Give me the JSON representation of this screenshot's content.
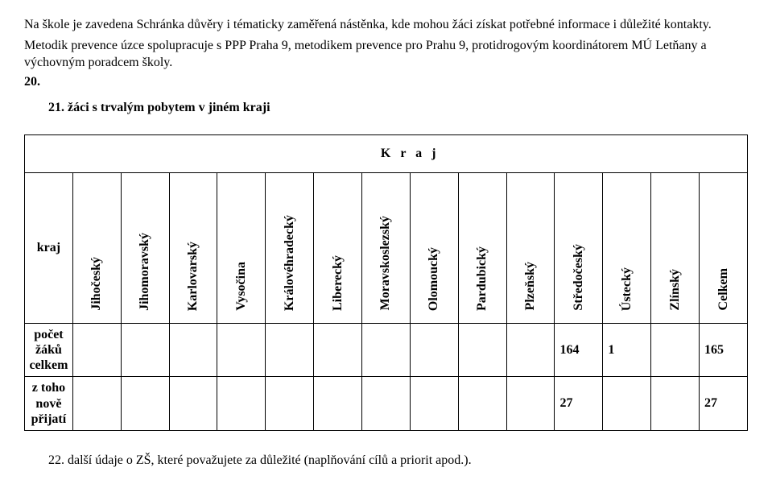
{
  "intro": {
    "p1": "Na škole je zavedena Schránka důvěry i tématicky zaměřená nástěnka, kde mohou žáci získat potřebné informace i důležité kontakty.",
    "p2": "Metodik prevence úzce spolupracuje s PPP Praha 9, metodikem prevence pro Prahu 9, protidrogovým koordinátorem MÚ Letňany a výchovným poradcem školy.",
    "p3": "20."
  },
  "heading21": "21. žáci s trvalým pobytem v jiném kraji",
  "table": {
    "header_label": "K r a j",
    "left_label": "kraj",
    "columns": [
      "Jihočeský",
      "Jihomoravský",
      "Karlovarský",
      "Vysočina",
      "Královéhradecký",
      "Liberecký",
      "Moravskoslezský",
      "Olomoucký",
      "Pardubický",
      "Plzeňský",
      "Středočeský",
      "Ústecký",
      "Zlínský",
      "Celkem"
    ],
    "rows": [
      {
        "label": "počet žáků celkem",
        "values": [
          "",
          "",
          "",
          "",
          "",
          "",
          "",
          "",
          "",
          "",
          "164",
          "1",
          "",
          "165"
        ]
      },
      {
        "label": "z toho nově přijatí",
        "values": [
          "",
          "",
          "",
          "",
          "",
          "",
          "",
          "",
          "",
          "",
          "27",
          "",
          "",
          "27"
        ]
      }
    ]
  },
  "footer": "22. další údaje o ZŠ, které považujete za důležité (naplňování cílů a priorit apod.)."
}
